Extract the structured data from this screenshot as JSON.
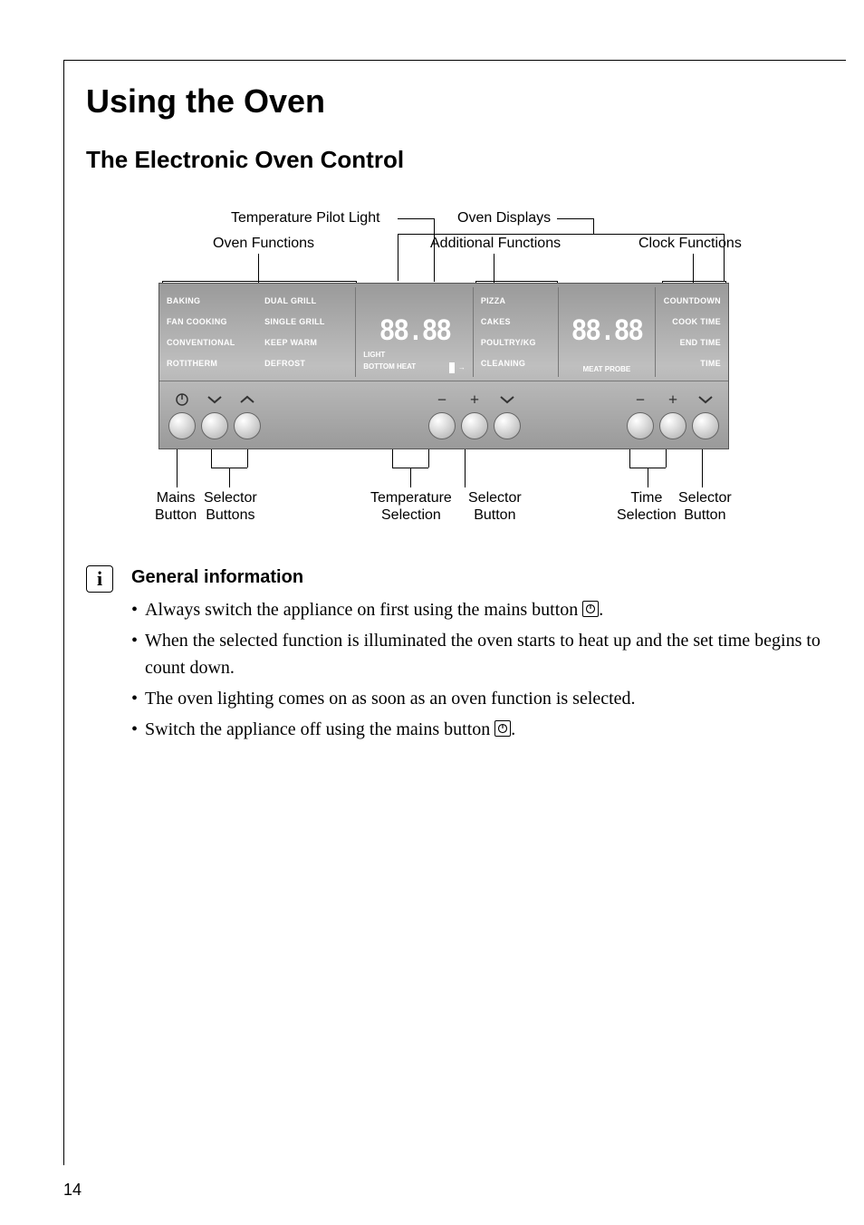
{
  "page_number": "14",
  "heading": "Using the Oven",
  "subheading": "The Electronic Oven Control",
  "top_labels": {
    "temp_pilot": "Temperature Pilot Light",
    "oven_functions": "Oven Functions",
    "oven_displays": "Oven Displays",
    "additional_functions": "Additional Functions",
    "clock_functions": "Clock Functions"
  },
  "panel": {
    "sec1_left": [
      "BAKING",
      "FAN COOKING",
      "CONVENTIONAL",
      "ROTITHERM"
    ],
    "sec1_right": [
      "DUAL GRILL",
      "SINGLE GRILL",
      "KEEP WARM",
      "DEFROST"
    ],
    "digits": "88.88",
    "sec2_bottom_left": "BOTTOM HEAT",
    "sec2_bottom_right": "LIGHT",
    "sec3": [
      "PIZZA",
      "CAKES",
      "POULTRY/KG",
      "CLEANING"
    ],
    "sec4_bottom": "MEAT PROBE",
    "sec5": [
      "COUNTDOWN",
      "COOK TIME",
      "END TIME",
      "TIME"
    ]
  },
  "buttons": {
    "symbols_group1": [
      "power",
      "chev-down",
      "chev-up"
    ],
    "symbols_group2": [
      "minus",
      "plus",
      "chev-down"
    ],
    "symbols_group3": [
      "minus",
      "plus",
      "chev-down"
    ]
  },
  "bottom_labels": {
    "mains": "Mains\nButton",
    "selector1": "Selector\nButtons",
    "temp_sel": "Temperature\nSelection",
    "selector2": "Selector\nButton",
    "time_sel": "Time\nSelection",
    "selector3": "Selector\nButton"
  },
  "info": {
    "header": "General information",
    "bullets": [
      "Always switch the appliance on first using the mains button {POWER}.",
      "When the selected function is illuminated the oven starts to heat up and the set time begins to count down.",
      "The oven lighting comes on as soon as an oven function is selected.",
      "Switch the appliance off using the mains button {POWER}."
    ]
  },
  "colors": {
    "panel_grad_top": "#9a9a9a",
    "panel_grad_mid": "#bfbfbf",
    "text_white": "#ffffff",
    "text_black": "#000000"
  }
}
